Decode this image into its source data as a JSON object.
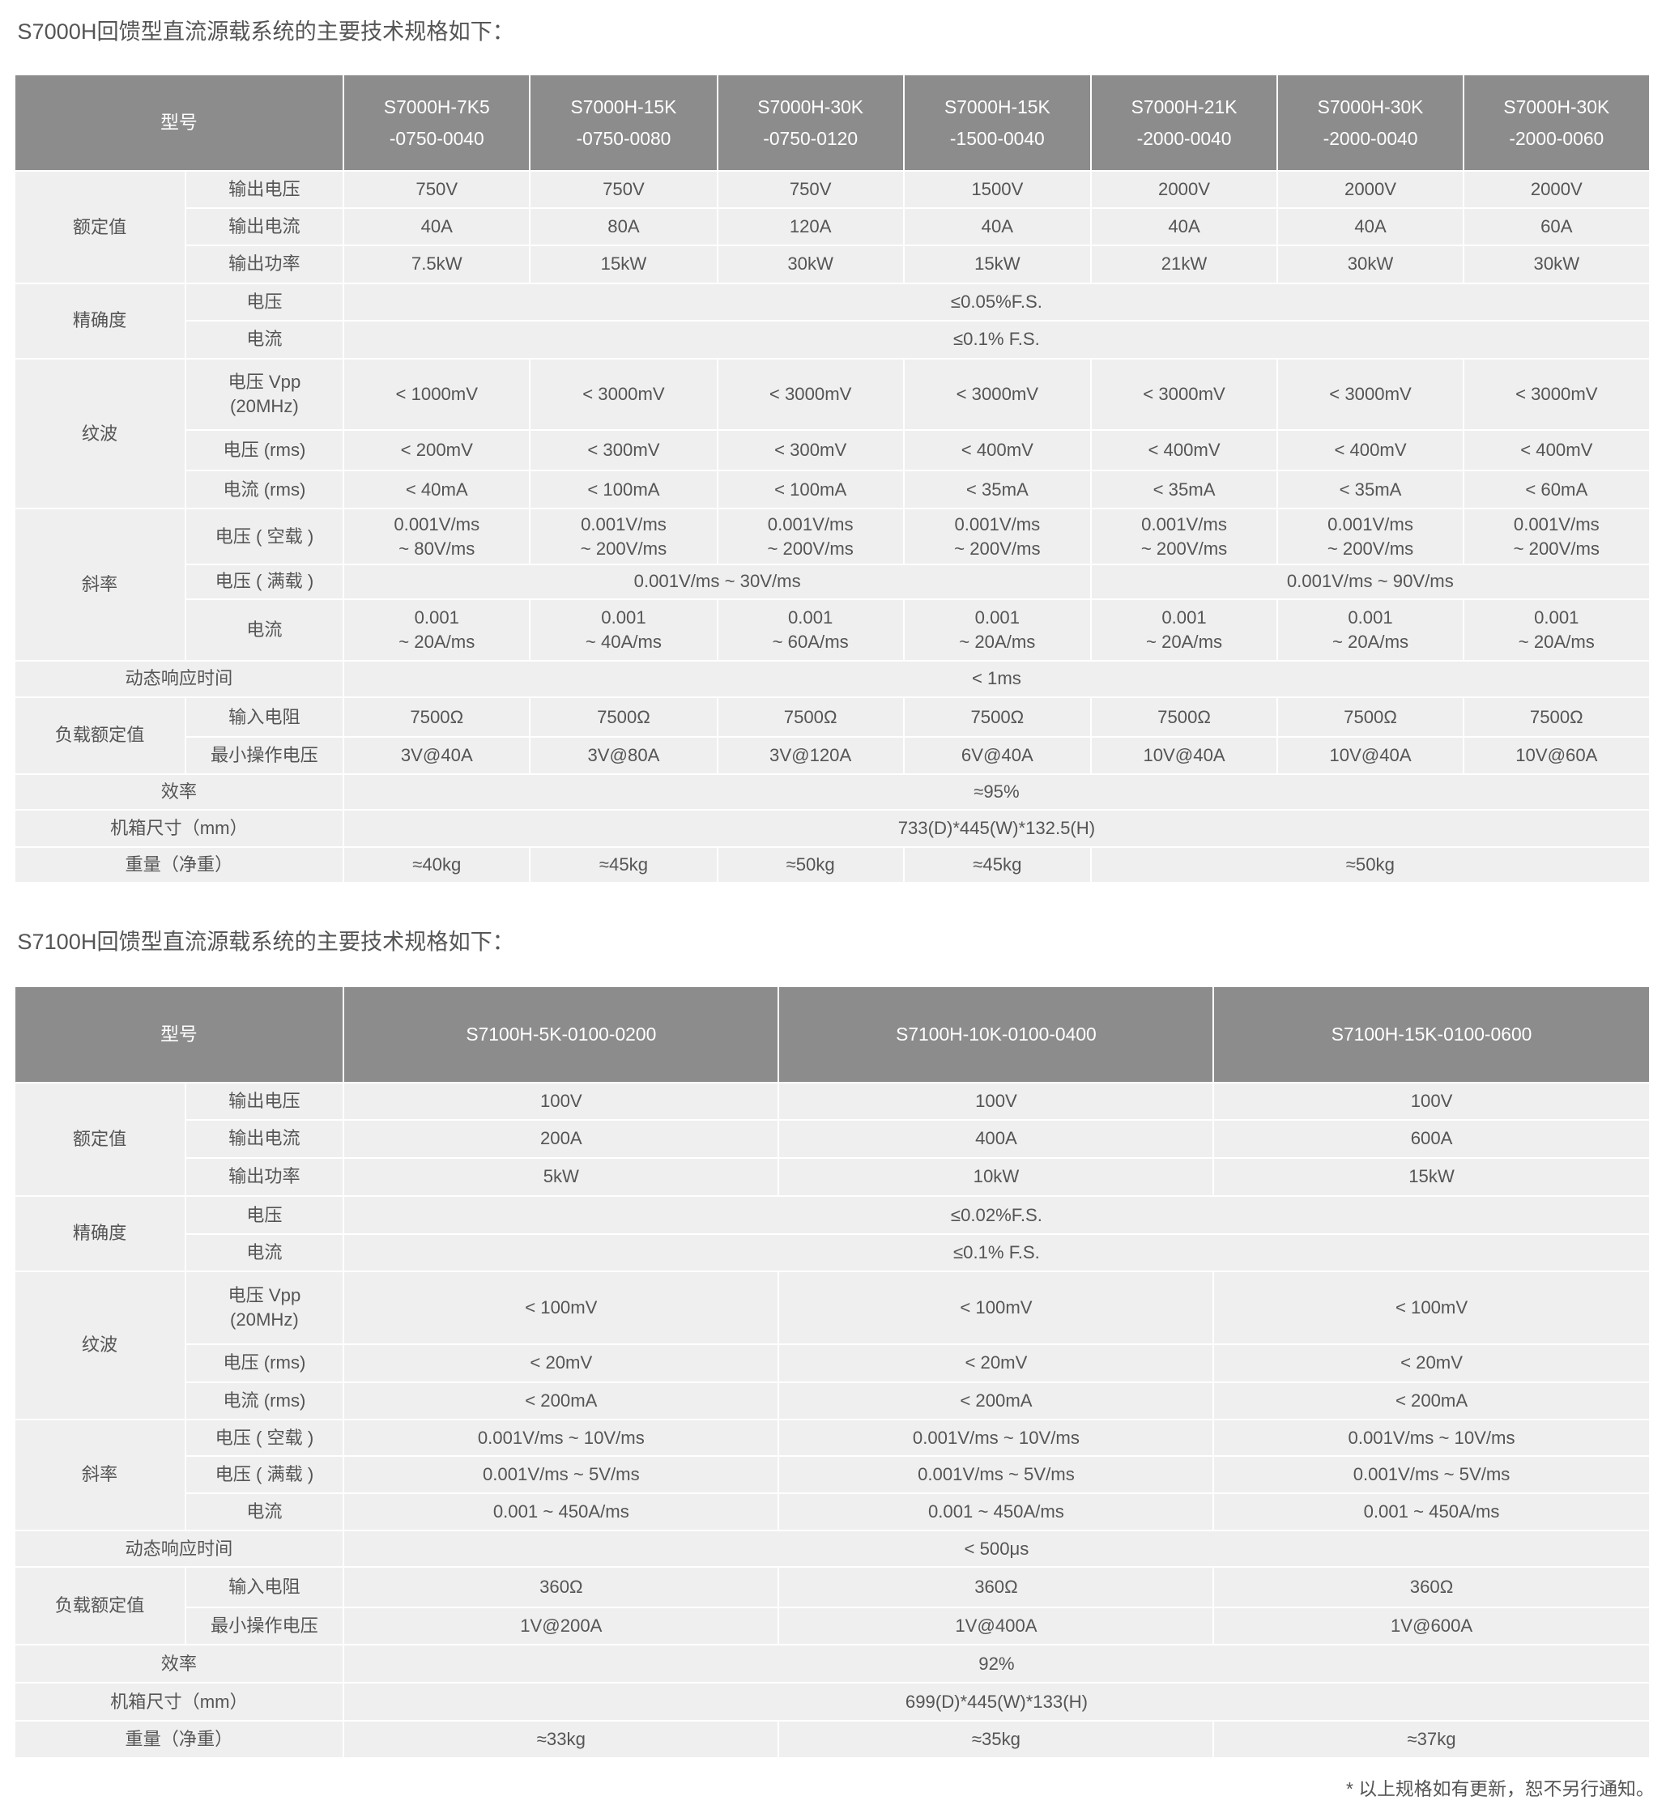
{
  "tables": [
    {
      "title": "S7000H回馈型直流源载系统的主要技术规格如下：",
      "model_label": "型号",
      "models": [
        "S7000H-7K5\n-0750-0040",
        "S7000H-15K\n-0750-0080",
        "S7000H-30K\n-0750-0120",
        "S7000H-15K\n-1500-0040",
        "S7000H-21K\n-2000-0040",
        "S7000H-30K\n-2000-0040",
        "S7000H-30K\n-2000-0060"
      ],
      "rows": [
        {
          "group": "额定值",
          "group_rows": 3,
          "label": "输出电压",
          "cells": [
            {
              "v": "750V"
            },
            {
              "v": "750V"
            },
            {
              "v": "750V"
            },
            {
              "v": "1500V"
            },
            {
              "v": "2000V"
            },
            {
              "v": "2000V"
            },
            {
              "v": "2000V"
            }
          ]
        },
        {
          "label": "输出电流",
          "cells": [
            {
              "v": "40A"
            },
            {
              "v": "80A"
            },
            {
              "v": "120A"
            },
            {
              "v": "40A"
            },
            {
              "v": "40A"
            },
            {
              "v": "40A"
            },
            {
              "v": "60A"
            }
          ]
        },
        {
          "label": "输出功率",
          "cells": [
            {
              "v": "7.5kW"
            },
            {
              "v": "15kW"
            },
            {
              "v": "30kW"
            },
            {
              "v": "15kW"
            },
            {
              "v": "21kW"
            },
            {
              "v": "30kW"
            },
            {
              "v": "30kW"
            }
          ]
        },
        {
          "group": "精确度",
          "group_rows": 2,
          "label": "电压",
          "cells": [
            {
              "v": "≤0.05%F.S.",
              "span": 7
            }
          ]
        },
        {
          "label": "电流",
          "cells": [
            {
              "v": "≤0.1% F.S.",
              "span": 7
            }
          ]
        },
        {
          "group": "纹波",
          "group_rows": 3,
          "label": "电压 Vpp\n(20MHz)",
          "cells": [
            {
              "v": "< 1000mV"
            },
            {
              "v": "< 3000mV"
            },
            {
              "v": "< 3000mV"
            },
            {
              "v": "< 3000mV"
            },
            {
              "v": "< 3000mV"
            },
            {
              "v": "< 3000mV"
            },
            {
              "v": "< 3000mV"
            }
          ]
        },
        {
          "label": "电压 (rms)",
          "cells": [
            {
              "v": "< 200mV"
            },
            {
              "v": "< 300mV"
            },
            {
              "v": "< 300mV"
            },
            {
              "v": "< 400mV"
            },
            {
              "v": "< 400mV"
            },
            {
              "v": "< 400mV"
            },
            {
              "v": "< 400mV"
            }
          ]
        },
        {
          "label": "电流 (rms)",
          "cells": [
            {
              "v": "< 40mA"
            },
            {
              "v": "< 100mA"
            },
            {
              "v": "< 100mA"
            },
            {
              "v": "< 35mA"
            },
            {
              "v": "< 35mA"
            },
            {
              "v": "< 35mA"
            },
            {
              "v": "< 60mA"
            }
          ]
        },
        {
          "group": "斜率",
          "group_rows": 3,
          "label": "电压 ( 空载 )",
          "cells": [
            {
              "v": "0.001V/ms\n~ 80V/ms"
            },
            {
              "v": "0.001V/ms\n~ 200V/ms"
            },
            {
              "v": "0.001V/ms\n~ 200V/ms"
            },
            {
              "v": "0.001V/ms\n~ 200V/ms"
            },
            {
              "v": "0.001V/ms\n~ 200V/ms"
            },
            {
              "v": "0.001V/ms\n~ 200V/ms"
            },
            {
              "v": "0.001V/ms\n~ 200V/ms"
            }
          ]
        },
        {
          "label": "电压 ( 满载 )",
          "cells": [
            {
              "v": "0.001V/ms ~ 30V/ms",
              "span": 4
            },
            {
              "v": "0.001V/ms ~ 90V/ms",
              "span": 3
            }
          ]
        },
        {
          "label": "电流",
          "cells": [
            {
              "v": "0.001\n~ 20A/ms"
            },
            {
              "v": "0.001\n~ 40A/ms"
            },
            {
              "v": "0.001\n~ 60A/ms"
            },
            {
              "v": "0.001\n~ 20A/ms"
            },
            {
              "v": "0.001\n~ 20A/ms"
            },
            {
              "v": "0.001\n~ 20A/ms"
            },
            {
              "v": "0.001\n~ 20A/ms"
            }
          ]
        },
        {
          "full_label": "动态响应时间",
          "cells": [
            {
              "v": "< 1ms",
              "span": 7
            }
          ]
        },
        {
          "group": "负载额定值",
          "group_rows": 2,
          "label": "输入电阻",
          "cells": [
            {
              "v": "7500Ω"
            },
            {
              "v": "7500Ω"
            },
            {
              "v": "7500Ω"
            },
            {
              "v": "7500Ω"
            },
            {
              "v": "7500Ω"
            },
            {
              "v": "7500Ω"
            },
            {
              "v": "7500Ω"
            }
          ]
        },
        {
          "label": "最小操作电压",
          "cells": [
            {
              "v": "3V@40A"
            },
            {
              "v": "3V@80A"
            },
            {
              "v": "3V@120A"
            },
            {
              "v": "6V@40A"
            },
            {
              "v": "10V@40A"
            },
            {
              "v": "10V@40A"
            },
            {
              "v": "10V@60A"
            }
          ]
        },
        {
          "full_label": "效率",
          "cells": [
            {
              "v": "≈95%",
              "span": 7
            }
          ]
        },
        {
          "full_label": "机箱尺寸（mm）",
          "cells": [
            {
              "v": "733(D)*445(W)*132.5(H)",
              "span": 7
            }
          ]
        },
        {
          "full_label": "重量（净重）",
          "cells": [
            {
              "v": "≈40kg"
            },
            {
              "v": "≈45kg"
            },
            {
              "v": "≈50kg"
            },
            {
              "v": "≈45kg"
            },
            {
              "v": "≈50kg",
              "span": 3
            }
          ]
        }
      ]
    },
    {
      "title": "S7100H回馈型直流源载系统的主要技术规格如下：",
      "model_label": "型号",
      "models": [
        "S7100H-5K-0100-0200",
        "S7100H-10K-0100-0400",
        "S7100H-15K-0100-0600"
      ],
      "rows": [
        {
          "group": "额定值",
          "group_rows": 3,
          "label": "输出电压",
          "cells": [
            {
              "v": "100V"
            },
            {
              "v": "100V"
            },
            {
              "v": "100V"
            }
          ]
        },
        {
          "label": "输出电流",
          "cells": [
            {
              "v": "200A"
            },
            {
              "v": "400A"
            },
            {
              "v": "600A"
            }
          ]
        },
        {
          "label": "输出功率",
          "cells": [
            {
              "v": "5kW"
            },
            {
              "v": "10kW"
            },
            {
              "v": "15kW"
            }
          ]
        },
        {
          "group": "精确度",
          "group_rows": 2,
          "label": "电压",
          "cells": [
            {
              "v": "≤0.02%F.S.",
              "span": 3
            }
          ]
        },
        {
          "label": "电流",
          "cells": [
            {
              "v": "≤0.1% F.S.",
              "span": 3
            }
          ]
        },
        {
          "group": "纹波",
          "group_rows": 3,
          "label": "电压 Vpp\n(20MHz)",
          "cells": [
            {
              "v": "< 100mV"
            },
            {
              "v": "< 100mV"
            },
            {
              "v": "< 100mV"
            }
          ]
        },
        {
          "label": "电压 (rms)",
          "cells": [
            {
              "v": "< 20mV"
            },
            {
              "v": "< 20mV"
            },
            {
              "v": "< 20mV"
            }
          ]
        },
        {
          "label": "电流 (rms)",
          "cells": [
            {
              "v": "< 200mA"
            },
            {
              "v": "< 200mA"
            },
            {
              "v": "< 200mA"
            }
          ]
        },
        {
          "group": "斜率",
          "group_rows": 3,
          "label": "电压 ( 空载 )",
          "cells": [
            {
              "v": "0.001V/ms ~ 10V/ms"
            },
            {
              "v": "0.001V/ms ~ 10V/ms"
            },
            {
              "v": "0.001V/ms ~ 10V/ms"
            }
          ]
        },
        {
          "label": "电压 ( 满载 )",
          "cells": [
            {
              "v": "0.001V/ms ~ 5V/ms"
            },
            {
              "v": "0.001V/ms ~ 5V/ms"
            },
            {
              "v": "0.001V/ms ~ 5V/ms"
            }
          ]
        },
        {
          "label": "电流",
          "cells": [
            {
              "v": "0.001 ~ 450A/ms"
            },
            {
              "v": "0.001 ~ 450A/ms"
            },
            {
              "v": "0.001 ~ 450A/ms"
            }
          ]
        },
        {
          "full_label": "动态响应时间",
          "cells": [
            {
              "v": "< 500μs",
              "span": 3
            }
          ]
        },
        {
          "group": "负载额定值",
          "group_rows": 2,
          "label": "输入电阻",
          "cells": [
            {
              "v": "360Ω"
            },
            {
              "v": "360Ω"
            },
            {
              "v": "360Ω"
            }
          ]
        },
        {
          "label": "最小操作电压",
          "cells": [
            {
              "v": "1V@200A"
            },
            {
              "v": "1V@400A"
            },
            {
              "v": "1V@600A"
            }
          ]
        },
        {
          "full_label": "效率",
          "cells": [
            {
              "v": "92%",
              "span": 3
            }
          ]
        },
        {
          "full_label": "机箱尺寸（mm）",
          "cells": [
            {
              "v": "699(D)*445(W)*133(H)",
              "span": 3
            }
          ]
        },
        {
          "full_label": "重量（净重）",
          "cells": [
            {
              "v": "≈33kg"
            },
            {
              "v": "≈35kg"
            },
            {
              "v": "≈37kg"
            }
          ]
        }
      ]
    }
  ],
  "footnote": "* 以上规格如有更新，恕不另行通知。"
}
